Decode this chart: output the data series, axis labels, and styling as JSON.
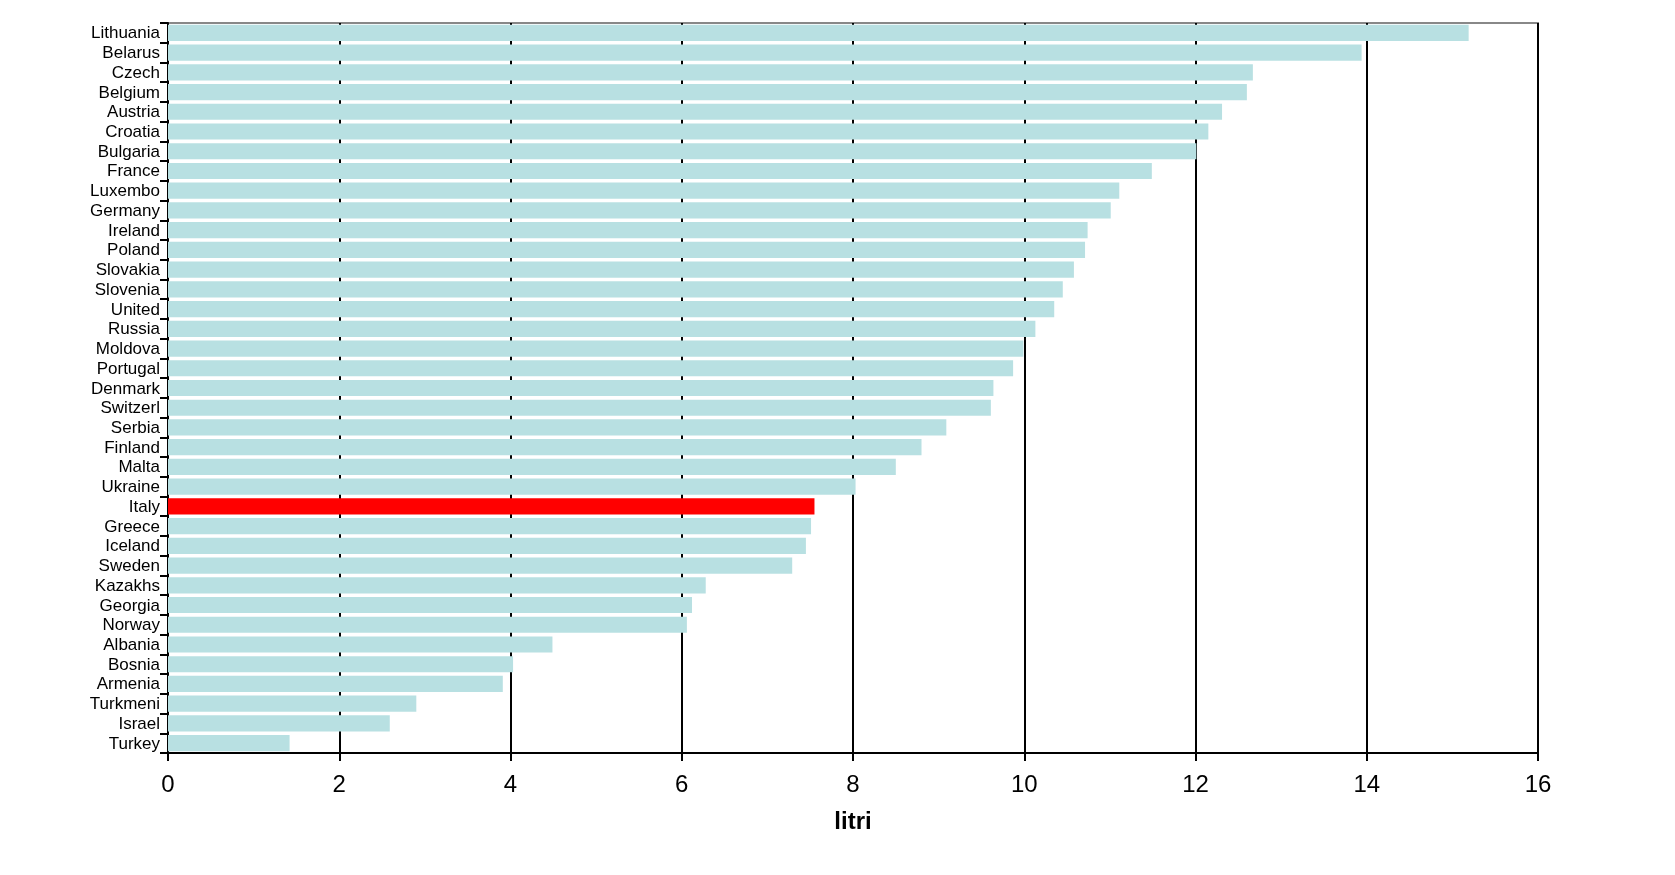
{
  "chart_data": {
    "type": "bar",
    "orientation": "horizontal",
    "xlabel": "litri",
    "categories": [
      "Lithuania",
      "Belarus",
      "Czech",
      "Belgium",
      "Austria",
      "Croatia",
      "Bulgaria",
      "France",
      "Luxembo",
      "Germany",
      "Ireland",
      "Poland",
      "Slovakia",
      "Slovenia",
      "United",
      "Russia",
      "Moldova",
      "Portugal",
      "Denmark",
      "Switzerl",
      "Serbia",
      "Finland",
      "Malta",
      "Ukraine",
      "Italy",
      "Greece",
      "Iceland",
      "Sweden",
      "Kazakhs",
      "Georgia",
      "Norway",
      "Albania",
      "Bosnia",
      "Armenia",
      "Turkmeni",
      "Israel",
      "Turkey"
    ],
    "values": [
      15.19,
      13.94,
      12.67,
      12.6,
      12.31,
      12.15,
      12.01,
      11.49,
      11.11,
      11.01,
      10.74,
      10.71,
      10.58,
      10.45,
      10.35,
      10.13,
      9.99,
      9.87,
      9.64,
      9.61,
      9.09,
      8.8,
      8.5,
      8.03,
      7.55,
      7.51,
      7.45,
      7.29,
      6.28,
      6.12,
      6.06,
      4.49,
      4.03,
      3.91,
      2.9,
      2.59,
      1.42
    ],
    "colors": [
      "#b8e0e2",
      "#b8e0e2",
      "#b8e0e2",
      "#b8e0e2",
      "#b8e0e2",
      "#b8e0e2",
      "#b8e0e2",
      "#b8e0e2",
      "#b8e0e2",
      "#b8e0e2",
      "#b8e0e2",
      "#b8e0e2",
      "#b8e0e2",
      "#b8e0e2",
      "#b8e0e2",
      "#b8e0e2",
      "#b8e0e2",
      "#b8e0e2",
      "#b8e0e2",
      "#b8e0e2",
      "#b8e0e2",
      "#b8e0e2",
      "#b8e0e2",
      "#b8e0e2",
      "#ff0000",
      "#b8e0e2",
      "#b8e0e2",
      "#b8e0e2",
      "#b8e0e2",
      "#b8e0e2",
      "#b8e0e2",
      "#b8e0e2",
      "#b8e0e2",
      "#b8e0e2",
      "#b8e0e2",
      "#b8e0e2",
      "#b8e0e2"
    ],
    "xlim": [
      0,
      16
    ],
    "xticks": [
      0,
      2,
      4,
      6,
      8,
      10,
      12,
      14,
      16
    ],
    "grid": "x"
  }
}
